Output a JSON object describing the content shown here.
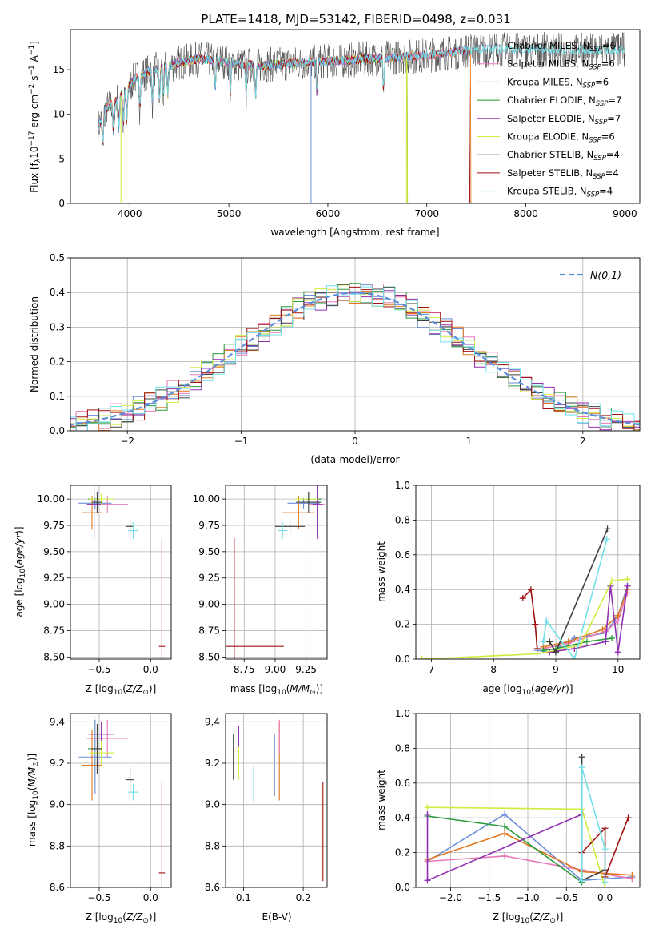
{
  "colors": {
    "Chabrier MILES": "#6a8ed8",
    "Salpeter MILES": "#e878b8",
    "Kroupa MILES": "#e07820",
    "Chabrier ELODIE": "#2a9a3a",
    "Salpeter ELODIE": "#9030b0",
    "Kroupa ELODIE": "#d0ec40",
    "Chabrier STELIB": "#404040",
    "Salpeter STELIB": "#a01010",
    "Kroupa STELIB": "#70e0e8",
    "normal_curve": "#5b8fd8"
  },
  "chart_data": [
    {
      "id": "spectrum",
      "type": "line",
      "title": "PLATE=1418, MJD=53142, FIBERID=0498, z=0.031",
      "xlabel": "wavelength [Angstrom, rest frame]",
      "ylabel_parts": [
        "Flux [f",
        "λ",
        "10",
        "−17",
        " erg cm",
        "−2",
        " s",
        "−1",
        " A",
        "−1",
        "]"
      ],
      "xlim": [
        3400,
        9150
      ],
      "ylim": [
        0,
        19.5
      ],
      "xticks": [
        "4000",
        "5000",
        "6000",
        "7000",
        "8000",
        "9000"
      ],
      "yticks": [
        "0",
        "5",
        "10",
        "15"
      ],
      "grid": false,
      "legend_position": "top-right",
      "legend": [
        {
          "name": "Chabrier MILES",
          "nssp": "6"
        },
        {
          "name": "Salpeter MILES",
          "nssp": "6"
        },
        {
          "name": "Kroupa MILES",
          "nssp": "6"
        },
        {
          "name": "Chabrier ELODIE",
          "nssp": "7"
        },
        {
          "name": "Salpeter ELODIE",
          "nssp": "7"
        },
        {
          "name": "Kroupa ELODIE",
          "nssp": "6"
        },
        {
          "name": "Chabrier STELIB",
          "nssp": "4"
        },
        {
          "name": "Salpeter STELIB",
          "nssp": "4"
        },
        {
          "name": "Kroupa STELIB",
          "nssp": "4"
        }
      ],
      "legend_nssp_label": "N",
      "legend_nssp_sub": "SSP",
      "continuum_approx": {
        "x": [
          3680,
          3750,
          3850,
          3950,
          4050,
          4200,
          4350,
          4500,
          4700,
          4900,
          5100,
          5300,
          5500,
          5800,
          6100,
          6400,
          6700,
          7000,
          7300,
          7450
        ],
        "y": [
          8.5,
          10.5,
          11.5,
          12.5,
          14.0,
          14.8,
          15.3,
          15.8,
          16.2,
          16.0,
          15.6,
          15.5,
          15.6,
          15.8,
          16.0,
          16.2,
          16.4,
          16.6,
          17.0,
          17.2
        ]
      }
    },
    {
      "id": "residuals",
      "type": "histogram",
      "xlabel": "(data-model)/error",
      "ylabel": "Normed distribution",
      "xlim": [
        -2.5,
        2.5
      ],
      "ylim": [
        0,
        0.5
      ],
      "xticks": [
        "−2",
        "−1",
        "0",
        "1",
        "2"
      ],
      "yticks": [
        "0.0",
        "0.1",
        "0.2",
        "0.3",
        "0.4",
        "0.5"
      ],
      "grid": true,
      "legend_position": "top-right",
      "legend_label": "N(0,1)",
      "series_names": [
        "Chabrier MILES",
        "Salpeter MILES",
        "Kroupa MILES",
        "Chabrier ELODIE",
        "Salpeter ELODIE",
        "Kroupa ELODIE",
        "Chabrier STELIB",
        "Salpeter STELIB",
        "Kroupa STELIB"
      ],
      "bin_width": 0.1
    },
    {
      "id": "age_vs_Z",
      "type": "scatter",
      "xlabel_parts": [
        "Z [log",
        "10",
        "(",
        "Z/Z",
        "⊙",
        ")]"
      ],
      "ylabel_parts": [
        "age  [log",
        "10",
        "(",
        "age/yr",
        ")]"
      ],
      "xlim": [
        -0.78,
        0.2
      ],
      "ylim": [
        8.48,
        10.13
      ],
      "xticks": [
        "−0.5",
        "0.0"
      ],
      "yticks": [
        "8.50",
        "8.75",
        "9.00",
        "9.25",
        "9.50",
        "9.75",
        "10.00"
      ],
      "grid": true,
      "points": [
        {
          "name": "Chabrier MILES",
          "x": -0.54,
          "xerr": 0.16,
          "y": 9.96,
          "yerr": 0.05
        },
        {
          "name": "Salpeter MILES",
          "x": -0.42,
          "xerr": 0.2,
          "y": 9.95,
          "yerr": 0.08
        },
        {
          "name": "Kroupa MILES",
          "x": -0.57,
          "xerr": 0.1,
          "y": 9.87,
          "yerr": 0.16
        },
        {
          "name": "Chabrier ELODIE",
          "x": -0.55,
          "xerr": 0.06,
          "y": 10.0,
          "yerr": 0.06
        },
        {
          "name": "Salpeter ELODIE",
          "x": -0.55,
          "xerr": 0.07,
          "y": 9.95,
          "yerr": 0.33
        },
        {
          "name": "Kroupa ELODIE",
          "x": -0.48,
          "xerr": 0.12,
          "y": 10.0,
          "yerr": 0.05
        },
        {
          "name": "Chabrier STELIB",
          "x": -0.52,
          "xerr": 0.05,
          "y": 9.97,
          "yerr": 0.1
        },
        {
          "name": "Chabrier STELIB",
          "x": -0.2,
          "xerr": 0.04,
          "y": 9.74,
          "yerr": 0.06
        },
        {
          "name": "Salpeter STELIB",
          "x": 0.11,
          "xerr": 0.03,
          "y": 8.6,
          "yerr": 1.03
        },
        {
          "name": "Kroupa STELIB",
          "x": -0.17,
          "xerr": 0.05,
          "y": 9.7,
          "yerr": 0.08
        }
      ]
    },
    {
      "id": "age_vs_mass",
      "type": "scatter",
      "xlabel_parts": [
        "mass [log",
        "10",
        "(",
        "M/M",
        "⊙",
        ")]"
      ],
      "ylabel": "",
      "xlim": [
        8.6,
        9.42
      ],
      "ylim": [
        8.48,
        10.13
      ],
      "xticks": [
        "8.75",
        "9.00",
        "9.25"
      ],
      "yticks": [
        "8.50",
        "8.75",
        "9.00",
        "9.25",
        "9.50",
        "9.75",
        "10.00"
      ],
      "grid": true,
      "points": [
        {
          "name": "Chabrier MILES",
          "x": 9.23,
          "xerr": 0.13,
          "y": 9.96,
          "yerr": 0.05
        },
        {
          "name": "Salpeter MILES",
          "x": 9.34,
          "xerr": 0.06,
          "y": 9.95,
          "yerr": 0.08
        },
        {
          "name": "Kroupa MILES",
          "x": 9.19,
          "xerr": 0.13,
          "y": 9.87,
          "yerr": 0.16
        },
        {
          "name": "Chabrier ELODIE",
          "x": 9.28,
          "xerr": 0.1,
          "y": 10.0,
          "yerr": 0.06
        },
        {
          "name": "Salpeter ELODIE",
          "x": 9.34,
          "xerr": 0.04,
          "y": 9.95,
          "yerr": 0.33
        },
        {
          "name": "Kroupa ELODIE",
          "x": 9.25,
          "xerr": 0.09,
          "y": 10.0,
          "yerr": 0.05
        },
        {
          "name": "Chabrier STELIB",
          "x": 9.27,
          "xerr": 0.1,
          "y": 9.97,
          "yerr": 0.1
        },
        {
          "name": "Chabrier STELIB",
          "x": 9.12,
          "xerr": 0.12,
          "y": 9.74,
          "yerr": 0.06
        },
        {
          "name": "Salpeter STELIB",
          "x": 8.67,
          "xerr": 0.4,
          "y": 8.6,
          "yerr": 1.03
        },
        {
          "name": "Kroupa STELIB",
          "x": 9.06,
          "xerr": 0.04,
          "y": 9.7,
          "yerr": 0.08
        }
      ]
    },
    {
      "id": "weight_vs_age",
      "type": "line",
      "xlabel_parts": [
        "age  [log",
        "10",
        "(",
        "age/yr",
        ")]"
      ],
      "ylabel": "mass weight",
      "xlim": [
        6.75,
        10.35
      ],
      "ylim": [
        0,
        1
      ],
      "xticks": [
        "7",
        "8",
        "9",
        "10"
      ],
      "yticks": [
        "0.0",
        "0.2",
        "0.4",
        "0.6",
        "0.8",
        "1.0"
      ],
      "grid": true,
      "series": [
        {
          "name": "Chabrier MILES",
          "x": [
            8.7,
            8.9,
            9.3,
            9.8,
            10.0,
            10.15
          ],
          "y": [
            0.05,
            0.04,
            0.12,
            0.15,
            0.25,
            0.42
          ]
        },
        {
          "name": "Salpeter MILES",
          "x": [
            8.8,
            9.2,
            9.8,
            10.0,
            10.15
          ],
          "y": [
            0.06,
            0.09,
            0.16,
            0.22,
            0.38
          ]
        },
        {
          "name": "Kroupa MILES",
          "x": [
            8.8,
            9.2,
            9.75,
            10.0,
            10.15
          ],
          "y": [
            0.07,
            0.1,
            0.17,
            0.25,
            0.4
          ]
        },
        {
          "name": "Chabrier ELODIE",
          "x": [
            8.8,
            9.0,
            9.5,
            9.9
          ],
          "y": [
            0.05,
            0.06,
            0.1,
            0.12
          ]
        },
        {
          "name": "Salpeter ELODIE",
          "x": [
            8.9,
            9.3,
            9.8,
            9.88,
            10.0,
            10.15
          ],
          "y": [
            0.04,
            0.06,
            0.1,
            0.42,
            0.04,
            0.42
          ]
        },
        {
          "name": "Kroupa ELODIE",
          "x": [
            6.85,
            8.7,
            9.4,
            9.9,
            10.15
          ],
          "y": [
            0.0,
            0.03,
            0.08,
            0.45,
            0.46
          ]
        },
        {
          "name": "Chabrier STELIB",
          "x": [
            8.8,
            8.9,
            9.0,
            9.83
          ],
          "y": [
            0.1,
            0.1,
            0.04,
            0.75
          ]
        },
        {
          "name": "Salpeter STELIB",
          "x": [
            8.47,
            8.6,
            8.67,
            8.7
          ],
          "y": [
            0.35,
            0.4,
            0.2,
            0.06
          ]
        },
        {
          "name": "Kroupa STELIB",
          "x": [
            8.8,
            8.85,
            9.3,
            9.82
          ],
          "y": [
            0.1,
            0.22,
            0.0,
            0.69
          ]
        }
      ]
    },
    {
      "id": "mass_vs_Z",
      "type": "scatter",
      "xlabel_parts": [
        "Z [log",
        "10",
        "(",
        "Z/Z",
        "⊙",
        ")]"
      ],
      "ylabel_parts": [
        "mass [log",
        "10",
        "(",
        "M/M",
        "⊙",
        ")]"
      ],
      "xlim": [
        -0.78,
        0.2
      ],
      "ylim": [
        8.6,
        9.44
      ],
      "xticks": [
        "−0.5",
        "0.0"
      ],
      "yticks": [
        "8.6",
        "8.8",
        "9.0",
        "9.2",
        "9.4"
      ],
      "grid": true,
      "points": [
        {
          "name": "Chabrier MILES",
          "x": -0.54,
          "xerr": 0.16,
          "y": 9.23,
          "yerr": 0.18
        },
        {
          "name": "Salpeter MILES",
          "x": -0.42,
          "xerr": 0.2,
          "y": 9.32,
          "yerr": 0.09
        },
        {
          "name": "Kroupa MILES",
          "x": -0.57,
          "xerr": 0.1,
          "y": 9.19,
          "yerr": 0.17
        },
        {
          "name": "Chabrier ELODIE",
          "x": -0.55,
          "xerr": 0.06,
          "y": 9.27,
          "yerr": 0.16
        },
        {
          "name": "Salpeter ELODIE",
          "x": -0.48,
          "xerr": 0.12,
          "y": 9.34,
          "yerr": 0.06
        },
        {
          "name": "Kroupa ELODIE",
          "x": -0.48,
          "xerr": 0.12,
          "y": 9.25,
          "yerr": 0.06
        },
        {
          "name": "Chabrier STELIB",
          "x": -0.52,
          "xerr": 0.05,
          "y": 9.27,
          "yerr": 0.12
        },
        {
          "name": "Chabrier STELIB",
          "x": -0.2,
          "xerr": 0.04,
          "y": 9.12,
          "yerr": 0.06
        },
        {
          "name": "Salpeter STELIB",
          "x": 0.11,
          "xerr": 0.03,
          "y": 8.67,
          "yerr": 0.44
        },
        {
          "name": "Kroupa STELIB",
          "x": -0.17,
          "xerr": 0.05,
          "y": 9.06,
          "yerr": 0.04
        }
      ]
    },
    {
      "id": "mass_vs_ebv",
      "type": "errorbar",
      "xlabel": "E(B-V)",
      "ylabel": "",
      "xlim": [
        0.07,
        0.24
      ],
      "ylim": [
        8.6,
        9.44
      ],
      "xticks": [
        "0.1",
        "0.2"
      ],
      "yticks": [
        "8.6",
        "8.8",
        "9.0",
        "9.2",
        "9.4"
      ],
      "grid": true,
      "points": [
        {
          "name": "Chabrier STELIB",
          "x": 0.083,
          "y": 9.23,
          "yerr": 0.11
        },
        {
          "name": "Salpeter ELODIE",
          "x": 0.092,
          "y": 9.29,
          "yerr": 0.09
        },
        {
          "name": "Kroupa ELODIE",
          "x": 0.092,
          "y": 9.2,
          "yerr": 0.08
        },
        {
          "name": "Kroupa STELIB",
          "x": 0.117,
          "y": 9.1,
          "yerr": 0.09
        },
        {
          "name": "Chabrier MILES",
          "x": 0.152,
          "y": 9.19,
          "yerr": 0.15
        },
        {
          "name": "Kroupa MILES",
          "x": 0.16,
          "y": 9.21,
          "yerr": 0.19
        },
        {
          "name": "Salpeter MILES",
          "x": 0.16,
          "y": 9.33,
          "yerr": 0.08
        },
        {
          "name": "Salpeter STELIB",
          "x": 0.233,
          "y": 8.87,
          "yerr": 0.24
        }
      ]
    },
    {
      "id": "weight_vs_Z",
      "type": "line",
      "xlabel_parts": [
        "Z [log",
        "10",
        "(",
        "Z/Z",
        "⊙",
        ")]"
      ],
      "ylabel": "mass weight",
      "xlim": [
        -2.45,
        0.45
      ],
      "ylim": [
        0,
        1
      ],
      "xticks": [
        "−2.0",
        "−1.5",
        "−1.0",
        "−0.5",
        "0.0"
      ],
      "yticks": [
        "0.0",
        "0.2",
        "0.4",
        "0.6",
        "0.8",
        "1.0"
      ],
      "grid": true,
      "series": [
        {
          "name": "Chabrier MILES",
          "x": [
            -2.3,
            -1.3,
            -0.3,
            0.35
          ],
          "y": [
            0.15,
            0.42,
            0.04,
            0.06
          ]
        },
        {
          "name": "Salpeter MILES",
          "x": [
            -2.3,
            -1.3,
            -0.3,
            0.35
          ],
          "y": [
            0.15,
            0.18,
            0.1,
            0.05
          ]
        },
        {
          "name": "Kroupa MILES",
          "x": [
            -2.3,
            -1.3,
            -0.3,
            0.35
          ],
          "y": [
            0.16,
            0.31,
            0.09,
            0.07
          ]
        },
        {
          "name": "Chabrier ELODIE",
          "x": [
            -2.3,
            -1.3,
            -0.3
          ],
          "y": [
            0.41,
            0.35,
            0.03
          ]
        },
        {
          "name": "Salpeter ELODIE",
          "x": [
            -2.3,
            -2.3,
            -0.3,
            -0.3
          ],
          "y": [
            0.42,
            0.04,
            0.42,
            0.04
          ]
        },
        {
          "name": "Kroupa ELODIE",
          "x": [
            -2.3,
            -0.3,
            0.0
          ],
          "y": [
            0.46,
            0.45,
            0.0
          ]
        },
        {
          "name": "Chabrier STELIB",
          "x": [
            -0.3,
            -0.3,
            0.0
          ],
          "y": [
            0.75,
            0.04,
            0.1
          ]
        },
        {
          "name": "Salpeter STELIB",
          "x": [
            -0.3,
            0.0,
            0.0,
            0.3
          ],
          "y": [
            0.2,
            0.34,
            0.06,
            0.4
          ]
        },
        {
          "name": "Kroupa STELIB",
          "x": [
            -0.3,
            -0.3,
            0.0,
            0.0
          ],
          "y": [
            0.04,
            0.69,
            0.22,
            0.03
          ]
        }
      ]
    }
  ]
}
